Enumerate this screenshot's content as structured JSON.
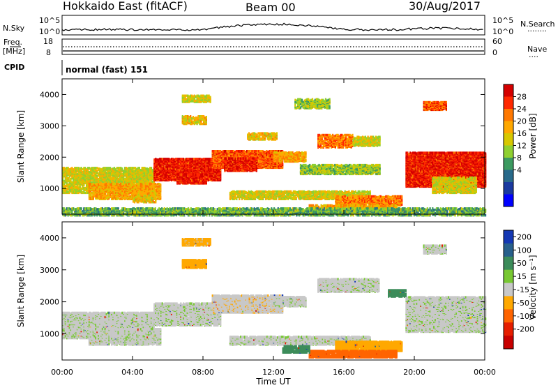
{
  "header": {
    "radar": "Hokkaido East (fitACF)",
    "beam": "Beam 00",
    "date": "30/Aug/2017"
  },
  "nsky": {
    "label": "N.Sky",
    "left_ticks": [
      "10^5",
      "10^0"
    ],
    "right_ticks": [
      "10^5",
      "10^0"
    ],
    "right_label": "N.Search",
    "right_legend_line": "........"
  },
  "freq": {
    "label_line1": "Freq.",
    "label_line2": "[MHz]",
    "left_ticks": [
      "18",
      "8"
    ],
    "right_ticks": [
      "60",
      "0"
    ],
    "right_label": "Nave",
    "right_legend_line": "...."
  },
  "cpid": {
    "label": "CPID",
    "value": "normal (fast) 151"
  },
  "power_panel": {
    "ylabel": "Slant Range [km]",
    "yticks": [
      "4000",
      "3000",
      "2000",
      "1000"
    ],
    "colorbar_label": "Power [dB]",
    "colorbar_ticks": [
      "28",
      "24",
      "20",
      "16",
      "12",
      "8",
      "4"
    ],
    "colorbar_colors": [
      "#d40000",
      "#ff2800",
      "#ff7800",
      "#ffa800",
      "#d8c800",
      "#8fd030",
      "#3c9a60",
      "#286a8a",
      "#1a3aa0",
      "#0000ff"
    ]
  },
  "velocity_panel": {
    "ylabel": "Slant Range [km]",
    "yticks": [
      "4000",
      "3000",
      "2000",
      "1000"
    ],
    "colorbar_label": "Velocity [m s⁻¹]",
    "colorbar_ticks": [
      "200",
      "100",
      "50",
      "15",
      "-15",
      "-50",
      "-100",
      "-200"
    ],
    "colorbar_colors": [
      "#1438b4",
      "#28608c",
      "#3c8c5a",
      "#78c832",
      "#c8c8c8",
      "#ffa800",
      "#ff6400",
      "#e61e00",
      "#c80000"
    ]
  },
  "xaxis": {
    "ticks": [
      "00:00",
      "04:00",
      "08:00",
      "12:00",
      "16:00",
      "20:00",
      "00:00"
    ],
    "label": "Time UT"
  },
  "chart_data": {
    "type": "heatmap",
    "x_range_hours": [
      0,
      24
    ],
    "y_range_km": [
      180,
      4500
    ],
    "power_scale_db": [
      0,
      30
    ],
    "velocity_scale_ms": [
      -200,
      200
    ],
    "power_regions": [
      {
        "t0": 0.0,
        "t1": 5.2,
        "r0": 900,
        "r1": 1700,
        "level": 16
      },
      {
        "t0": 1.5,
        "t1": 5.6,
        "r0": 700,
        "r1": 1200,
        "level": 20
      },
      {
        "t0": 4.0,
        "t1": 5.3,
        "r0": 600,
        "r1": 900,
        "level": 18
      },
      {
        "t0": 5.2,
        "t1": 9.0,
        "r0": 1300,
        "r1": 2000,
        "level": 27
      },
      {
        "t0": 6.5,
        "t1": 8.2,
        "r0": 1200,
        "r1": 1500,
        "level": 27
      },
      {
        "t0": 8.5,
        "t1": 12.5,
        "r0": 1700,
        "r1": 2250,
        "level": 24
      },
      {
        "t0": 9.2,
        "t1": 11.0,
        "r0": 1600,
        "r1": 2000,
        "level": 27
      },
      {
        "t0": 12.0,
        "t1": 13.8,
        "r0": 1900,
        "r1": 2200,
        "level": 20
      },
      {
        "t0": 10.5,
        "t1": 12.2,
        "r0": 2600,
        "r1": 2800,
        "level": 18
      },
      {
        "t0": 14.5,
        "t1": 16.5,
        "r0": 2350,
        "r1": 2750,
        "level": 22
      },
      {
        "t0": 16.5,
        "t1": 18.0,
        "r0": 2400,
        "r1": 2700,
        "level": 16
      },
      {
        "t0": 13.5,
        "t1": 18.0,
        "r0": 1500,
        "r1": 1800,
        "level": 14
      },
      {
        "t0": 9.5,
        "t1": 17.5,
        "r0": 700,
        "r1": 950,
        "level": 16
      },
      {
        "t0": 15.5,
        "t1": 19.3,
        "r0": 500,
        "r1": 800,
        "level": 22
      },
      {
        "t0": 14.0,
        "t1": 19.0,
        "r0": 300,
        "r1": 500,
        "level": 20
      },
      {
        "t0": 19.5,
        "t1": 24.0,
        "r0": 1100,
        "r1": 2200,
        "level": 27
      },
      {
        "t0": 21.0,
        "t1": 23.5,
        "r0": 900,
        "r1": 1400,
        "level": 16
      },
      {
        "t0": 20.5,
        "t1": 21.8,
        "r0": 3550,
        "r1": 3800,
        "level": 24
      },
      {
        "t0": 13.2,
        "t1": 15.2,
        "r0": 3600,
        "r1": 3900,
        "level": 14
      },
      {
        "t0": 6.8,
        "t1": 8.2,
        "r0": 3100,
        "r1": 3350,
        "level": 18
      },
      {
        "t0": 6.8,
        "t1": 8.4,
        "r0": 3800,
        "r1": 4000,
        "level": 16
      },
      {
        "t0": 0.0,
        "t1": 24.0,
        "r0": 180,
        "r1": 420,
        "level": 12
      }
    ],
    "velocity_regions": [
      {
        "t0": 0.0,
        "t1": 5.2,
        "r0": 900,
        "r1": 1700,
        "v": 0
      },
      {
        "t0": 1.5,
        "t1": 5.6,
        "r0": 700,
        "r1": 1200,
        "v": 0
      },
      {
        "t0": 5.2,
        "t1": 9.0,
        "r0": 1300,
        "r1": 2000,
        "v": 0
      },
      {
        "t0": 8.5,
        "t1": 12.5,
        "r0": 1700,
        "r1": 2250,
        "v": -10
      },
      {
        "t0": 12.0,
        "t1": 13.8,
        "r0": 1900,
        "r1": 2200,
        "v": 0
      },
      {
        "t0": 14.5,
        "t1": 18.0,
        "r0": 2350,
        "r1": 2750,
        "v": 0
      },
      {
        "t0": 9.5,
        "t1": 17.5,
        "r0": 700,
        "r1": 950,
        "v": 0
      },
      {
        "t0": 15.5,
        "t1": 19.3,
        "r0": 500,
        "r1": 800,
        "v": -40
      },
      {
        "t0": 14.0,
        "t1": 19.0,
        "r0": 300,
        "r1": 500,
        "v": -60
      },
      {
        "t0": 12.5,
        "t1": 14.0,
        "r0": 450,
        "r1": 650,
        "v": 30
      },
      {
        "t0": 19.5,
        "t1": 24.0,
        "r0": 1100,
        "r1": 2200,
        "v": 0
      },
      {
        "t0": 18.5,
        "t1": 19.5,
        "r0": 2200,
        "r1": 2400,
        "v": 25
      },
      {
        "t0": 20.5,
        "t1": 21.8,
        "r0": 3550,
        "r1": 3800,
        "v": 0
      },
      {
        "t0": 6.8,
        "t1": 8.2,
        "r0": 3100,
        "r1": 3350,
        "v": -30
      },
      {
        "t0": 6.8,
        "t1": 8.4,
        "r0": 3800,
        "r1": 4000,
        "v": -20
      }
    ]
  }
}
